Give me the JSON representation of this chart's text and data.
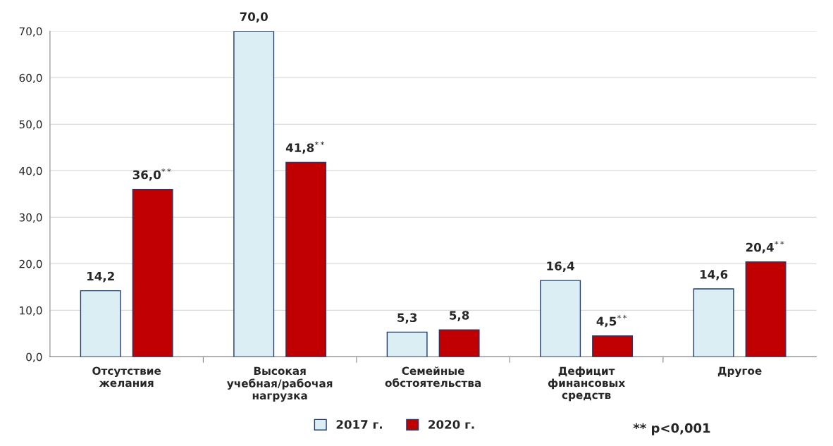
{
  "chart_data": {
    "type": "bar",
    "categories": [
      "Отсутствие\nжелания",
      "Высокая\nучебная/рабочая\nнагрузка",
      "Семейные\nобстоятельства",
      "Дефицит\nфинансовых\nсредств",
      "Другое"
    ],
    "series": [
      {
        "name": "2017 г.",
        "color": "#dbeef4",
        "values": [
          14.2,
          70.0,
          5.3,
          16.4,
          14.6
        ],
        "value_labels": [
          "14,2",
          "70,0",
          "5,3",
          "16,4",
          "14,6"
        ]
      },
      {
        "name": "2020 г.",
        "color": "#c00000",
        "values": [
          36.0,
          41.8,
          5.8,
          4.5,
          20.4
        ],
        "value_labels": [
          "36,0$^{**}$",
          "41,8$^{**}$",
          "5,8",
          "4,5$^{**}$",
          "20,4$^{**}$"
        ]
      }
    ],
    "ylim": [
      0,
      70
    ],
    "yticks": [
      {
        "value": 0,
        "label": "0,0"
      },
      {
        "value": 10,
        "label": "10,0"
      },
      {
        "value": 20,
        "label": "20,0"
      },
      {
        "value": 30,
        "label": "30,0"
      },
      {
        "value": 40,
        "label": "40,0"
      },
      {
        "value": 50,
        "label": "50,0"
      },
      {
        "value": 60,
        "label": "60,0"
      },
      {
        "value": 70,
        "label": "70,0"
      }
    ],
    "grid": "y",
    "legend": "bottom",
    "annotations": [
      "** p<0,001"
    ]
  }
}
